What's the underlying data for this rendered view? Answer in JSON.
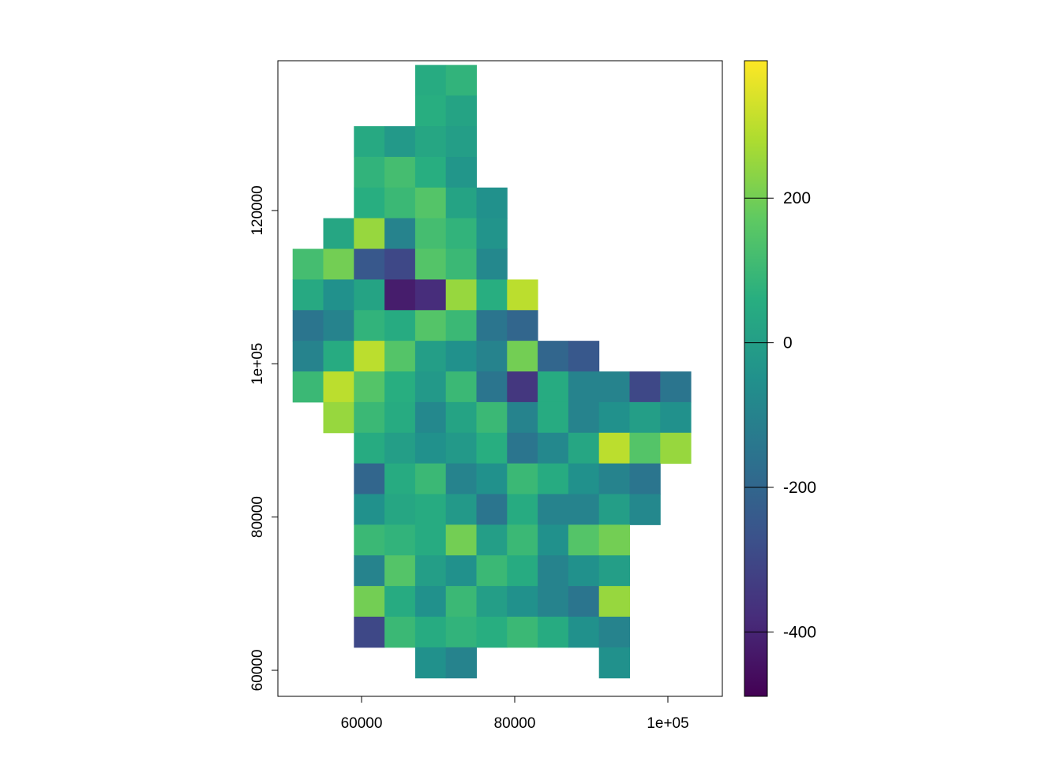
{
  "chart_data": {
    "type": "raster",
    "colormap": "viridis",
    "x": [
      53000,
      57000,
      61000,
      65000,
      69000,
      73000,
      77000,
      81000,
      85000,
      89000,
      93000,
      97000,
      101000
    ],
    "y": [
      137000,
      133000,
      129000,
      125000,
      121000,
      117000,
      113000,
      109000,
      105000,
      101000,
      97000,
      93000,
      89000,
      85000,
      81000,
      77000,
      73000,
      69000,
      65000,
      61000
    ],
    "values": [
      [
        null,
        null,
        null,
        null,
        50,
        80,
        null,
        null,
        null,
        null,
        null,
        null,
        null
      ],
      [
        null,
        null,
        null,
        null,
        60,
        20,
        null,
        null,
        null,
        null,
        null,
        null,
        null
      ],
      [
        null,
        null,
        40,
        -20,
        30,
        0,
        null,
        null,
        null,
        null,
        null,
        null,
        null
      ],
      [
        null,
        null,
        80,
        120,
        60,
        -30,
        null,
        null,
        null,
        null,
        null,
        null,
        null
      ],
      [
        null,
        null,
        60,
        100,
        150,
        20,
        -50,
        null,
        null,
        null,
        null,
        null,
        null
      ],
      [
        null,
        30,
        250,
        -100,
        120,
        80,
        -40,
        null,
        null,
        null,
        null,
        null,
        null
      ],
      [
        120,
        200,
        -250,
        -300,
        150,
        100,
        -80,
        null,
        null,
        null,
        null,
        null,
        null
      ],
      [
        40,
        -50,
        20,
        -420,
        -380,
        250,
        60,
        300,
        null,
        null,
        null,
        null,
        null
      ],
      [
        -150,
        -100,
        80,
        50,
        150,
        100,
        -150,
        -200,
        null,
        null,
        null,
        null,
        null
      ],
      [
        -100,
        50,
        300,
        150,
        0,
        -50,
        -100,
        200,
        -200,
        -250,
        null,
        null,
        null
      ],
      [
        100,
        300,
        150,
        60,
        -20,
        100,
        -150,
        -350,
        50,
        -100,
        -100,
        -300,
        -150
      ],
      [
        null,
        250,
        100,
        50,
        -80,
        20,
        100,
        -100,
        50,
        -100,
        -50,
        0,
        -50
      ],
      [
        null,
        null,
        50,
        0,
        -50,
        -20,
        60,
        -150,
        -80,
        30,
        300,
        150,
        250
      ],
      [
        null,
        null,
        -200,
        50,
        100,
        -100,
        -50,
        100,
        50,
        -50,
        -100,
        -150,
        null
      ],
      [
        null,
        null,
        -50,
        30,
        50,
        -20,
        -150,
        50,
        -100,
        -100,
        0,
        -80,
        null
      ],
      [
        null,
        null,
        100,
        80,
        50,
        200,
        0,
        100,
        -50,
        150,
        200,
        null,
        null
      ],
      [
        null,
        null,
        -100,
        150,
        0,
        -50,
        100,
        50,
        -100,
        -50,
        0,
        null,
        null
      ],
      [
        null,
        null,
        200,
        50,
        -50,
        100,
        0,
        -50,
        -100,
        -150,
        250,
        null,
        null
      ],
      [
        null,
        null,
        -300,
        100,
        50,
        80,
        60,
        100,
        50,
        -50,
        -100,
        null,
        null
      ],
      [
        null,
        null,
        null,
        null,
        -50,
        -100,
        null,
        null,
        null,
        null,
        -50,
        null,
        null
      ]
    ],
    "xlim": [
      49072,
      107113
    ],
    "ylim": [
      56605,
      139547
    ],
    "zlim": [
      -489,
      390
    ],
    "xticks": [
      60000,
      80000,
      {
        "value": 100000,
        "label": "1e+05"
      }
    ],
    "yticks": [
      60000,
      80000,
      {
        "value": 100000,
        "label": "1e+05"
      },
      120000
    ],
    "zticks": [
      -400,
      -200,
      0,
      200
    ]
  }
}
